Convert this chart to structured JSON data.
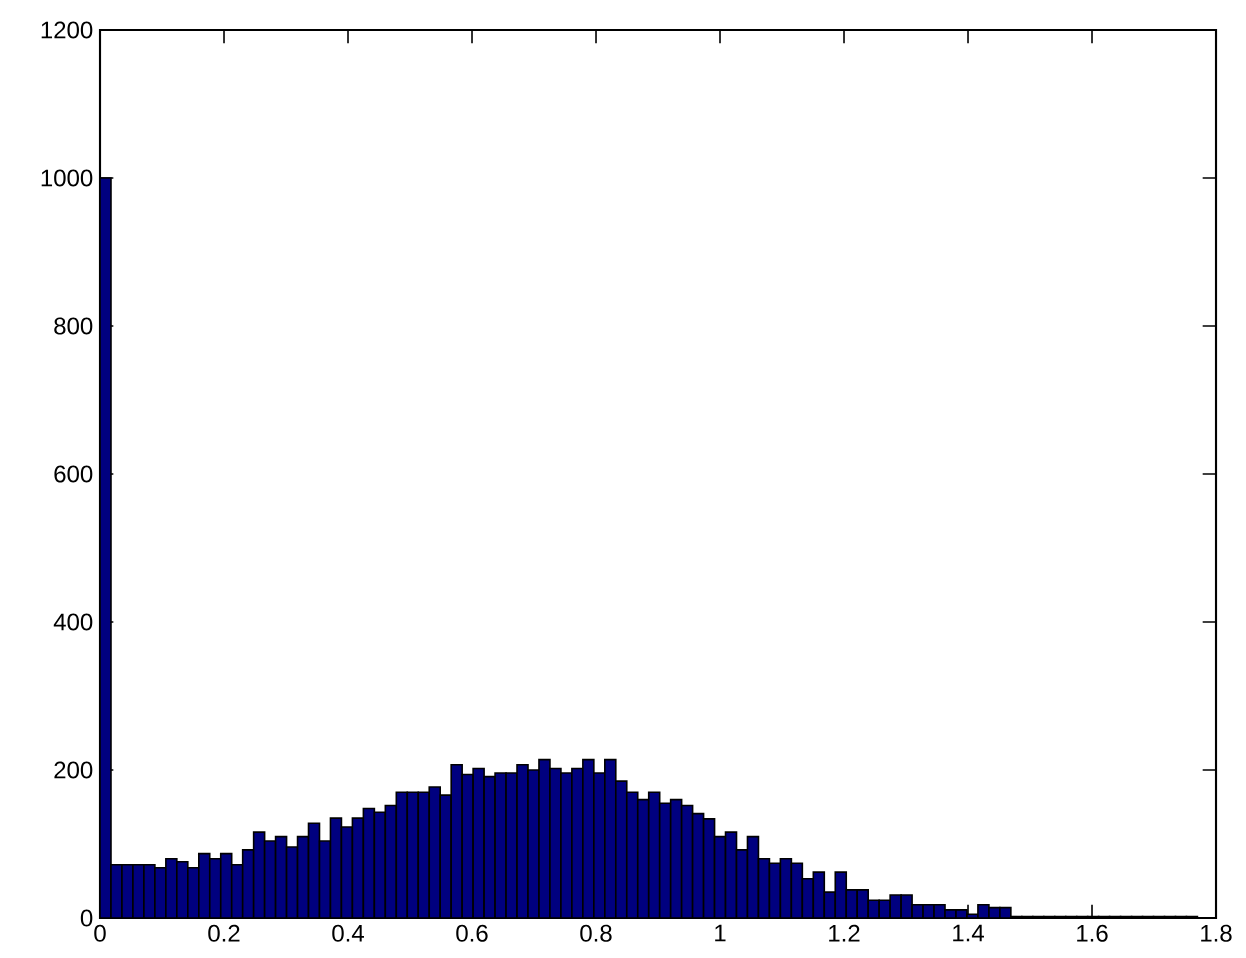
{
  "chart_data": {
    "type": "histogram",
    "bins": [
      0,
      0.0177,
      0.0354,
      0.0531,
      0.0708,
      0.0885,
      0.1062,
      0.1239,
      0.1416,
      0.1593,
      0.177,
      0.1947,
      0.2124,
      0.2301,
      0.2478,
      0.2655,
      0.2832,
      0.3009,
      0.3186,
      0.3363,
      0.354,
      0.3717,
      0.3894,
      0.4071,
      0.4248,
      0.4425,
      0.4602,
      0.4779,
      0.4956,
      0.5133,
      0.531,
      0.5487,
      0.5664,
      0.5841,
      0.6018,
      0.6195,
      0.6372,
      0.6549,
      0.6726,
      0.6903,
      0.708,
      0.7257,
      0.7434,
      0.7611,
      0.7788,
      0.7965,
      0.8142,
      0.8319,
      0.8496,
      0.8673,
      0.885,
      0.9027,
      0.9204,
      0.9381,
      0.9558,
      0.9735,
      0.9912,
      1.0089,
      1.0266,
      1.0443,
      1.062,
      1.0797,
      1.0974,
      1.1151,
      1.1328,
      1.1505,
      1.1682,
      1.1859,
      1.2036,
      1.2213,
      1.239,
      1.2567,
      1.2744,
      1.2921,
      1.3098,
      1.3275,
      1.3452,
      1.3629,
      1.3806,
      1.3983,
      1.416,
      1.4337,
      1.4514,
      1.4691,
      1.4868,
      1.5045,
      1.5222,
      1.5399,
      1.5576,
      1.5753,
      1.593,
      1.6107,
      1.6284,
      1.6461,
      1.6638,
      1.6815,
      1.6992,
      1.7169,
      1.7346,
      1.7523,
      1.77
    ],
    "values": [
      1000,
      72,
      72,
      72,
      72,
      68,
      80,
      76,
      68,
      87,
      80,
      87,
      72,
      92,
      116,
      104,
      110,
      96,
      110,
      128,
      104,
      135,
      123,
      135,
      148,
      143,
      152,
      170,
      170,
      170,
      177,
      166,
      207,
      194,
      202,
      191,
      196,
      196,
      207,
      200,
      214,
      202,
      196,
      202,
      214,
      196,
      214,
      185,
      170,
      160,
      170,
      155,
      160,
      152,
      141,
      134,
      110,
      116,
      92,
      110,
      80,
      74,
      80,
      74,
      53,
      62,
      35,
      62,
      38,
      38,
      24,
      24,
      31,
      31,
      18,
      18,
      18,
      11,
      11,
      5,
      18,
      14,
      14,
      2,
      2,
      2,
      2,
      2,
      2,
      2,
      2,
      2,
      2,
      2,
      2,
      2,
      2,
      2,
      2,
      2
    ],
    "color": "#00007f",
    "xlim": [
      0,
      1.8
    ],
    "ylim": [
      0,
      1200
    ],
    "xticks": [
      0,
      0.2,
      0.4,
      0.6,
      0.8,
      1,
      1.2,
      1.4,
      1.6,
      1.8
    ],
    "yticks": [
      0,
      200,
      400,
      600,
      800,
      1000,
      1200
    ]
  }
}
